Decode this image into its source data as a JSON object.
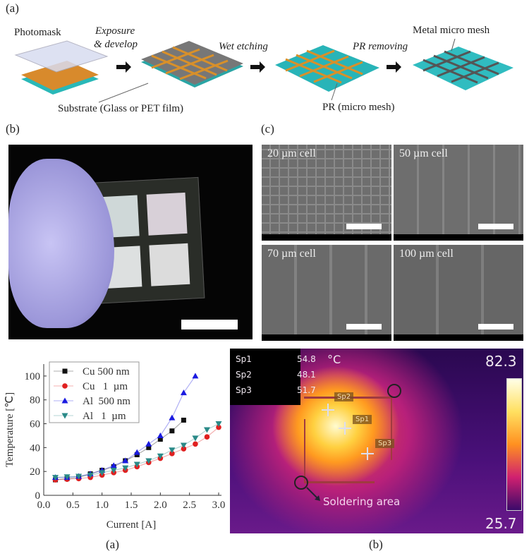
{
  "panel_labels": {
    "top": "(a)",
    "photo": "(b)",
    "sem": "(c)",
    "chart_caption": "(a)",
    "thermal_caption": "(b)"
  },
  "process": {
    "photomask": "Photomask",
    "step1": "Exposure",
    "step1b": "& develop",
    "step2": "Wet etching",
    "step3": "PR removing",
    "metal_mesh": "Metal micro mesh",
    "substrate": "Substrate (Glass or PET film)",
    "pr": "PR (micro mesh)"
  },
  "sem": [
    {
      "label": "20 µm cell"
    },
    {
      "label": "50 µm cell"
    },
    {
      "label": "70 µm cell"
    },
    {
      "label": "100 µm cell"
    }
  ],
  "thermal": {
    "readouts": [
      {
        "name": "Sp1",
        "value": "54.8"
      },
      {
        "name": "Sp2",
        "value": "48.1"
      },
      {
        "name": "Sp3",
        "value": "51.7"
      }
    ],
    "unit": "°C",
    "max": "82.3",
    "min": "25.7",
    "annotation": "Soldering area",
    "markers": [
      "Sp2",
      "Sp1",
      "Sp3"
    ]
  },
  "chart_data": {
    "type": "line",
    "xlabel": "Current [A]",
    "ylabel": "Temperature [℃]",
    "xlim": [
      0,
      3.0
    ],
    "ylim": [
      0,
      110
    ],
    "xticks": [
      "0.0",
      "0.5",
      "1.0",
      "1.5",
      "2.0",
      "2.5",
      "3.0"
    ],
    "yticks": [
      "0",
      "20",
      "40",
      "60",
      "80",
      "100"
    ],
    "legend_position": "top-left",
    "series": [
      {
        "name": "Cu 500 nm",
        "color": "#111111",
        "marker": "square",
        "x": [
          0.2,
          0.4,
          0.6,
          0.8,
          1.0,
          1.2,
          1.4,
          1.6,
          1.8,
          2.0,
          2.2,
          2.4
        ],
        "y": [
          13,
          14,
          15,
          18,
          21,
          24,
          29,
          34,
          40,
          47,
          54,
          63
        ]
      },
      {
        "name": "Cu   1  µm",
        "color": "#e02020",
        "marker": "circle",
        "x": [
          0.2,
          0.4,
          0.6,
          0.8,
          1.0,
          1.2,
          1.4,
          1.6,
          1.8,
          2.0,
          2.2,
          2.4,
          2.6,
          2.8,
          3.0
        ],
        "y": [
          13,
          13.5,
          14,
          15,
          17,
          19,
          21,
          24,
          27.5,
          31,
          35,
          39,
          43,
          49,
          57
        ]
      },
      {
        "name": "Al  500 nm",
        "color": "#1a1ae0",
        "marker": "triangle-up",
        "x": [
          0.2,
          0.4,
          0.6,
          0.8,
          1.0,
          1.2,
          1.4,
          1.6,
          1.8,
          2.0,
          2.2,
          2.4,
          2.6
        ],
        "y": [
          15,
          15,
          16,
          18,
          21,
          25,
          29,
          36,
          43,
          50,
          65,
          86,
          100
        ]
      },
      {
        "name": "Al   1  µm",
        "color": "#2a8a88",
        "marker": "triangle-down",
        "x": [
          0.2,
          0.4,
          0.6,
          0.8,
          1.0,
          1.2,
          1.4,
          1.6,
          1.8,
          2.0,
          2.2,
          2.4,
          2.6,
          2.8,
          3.0
        ],
        "y": [
          15,
          15.5,
          16,
          17,
          19,
          21,
          23,
          26,
          29,
          33,
          38,
          42,
          48,
          55,
          60
        ]
      }
    ]
  }
}
